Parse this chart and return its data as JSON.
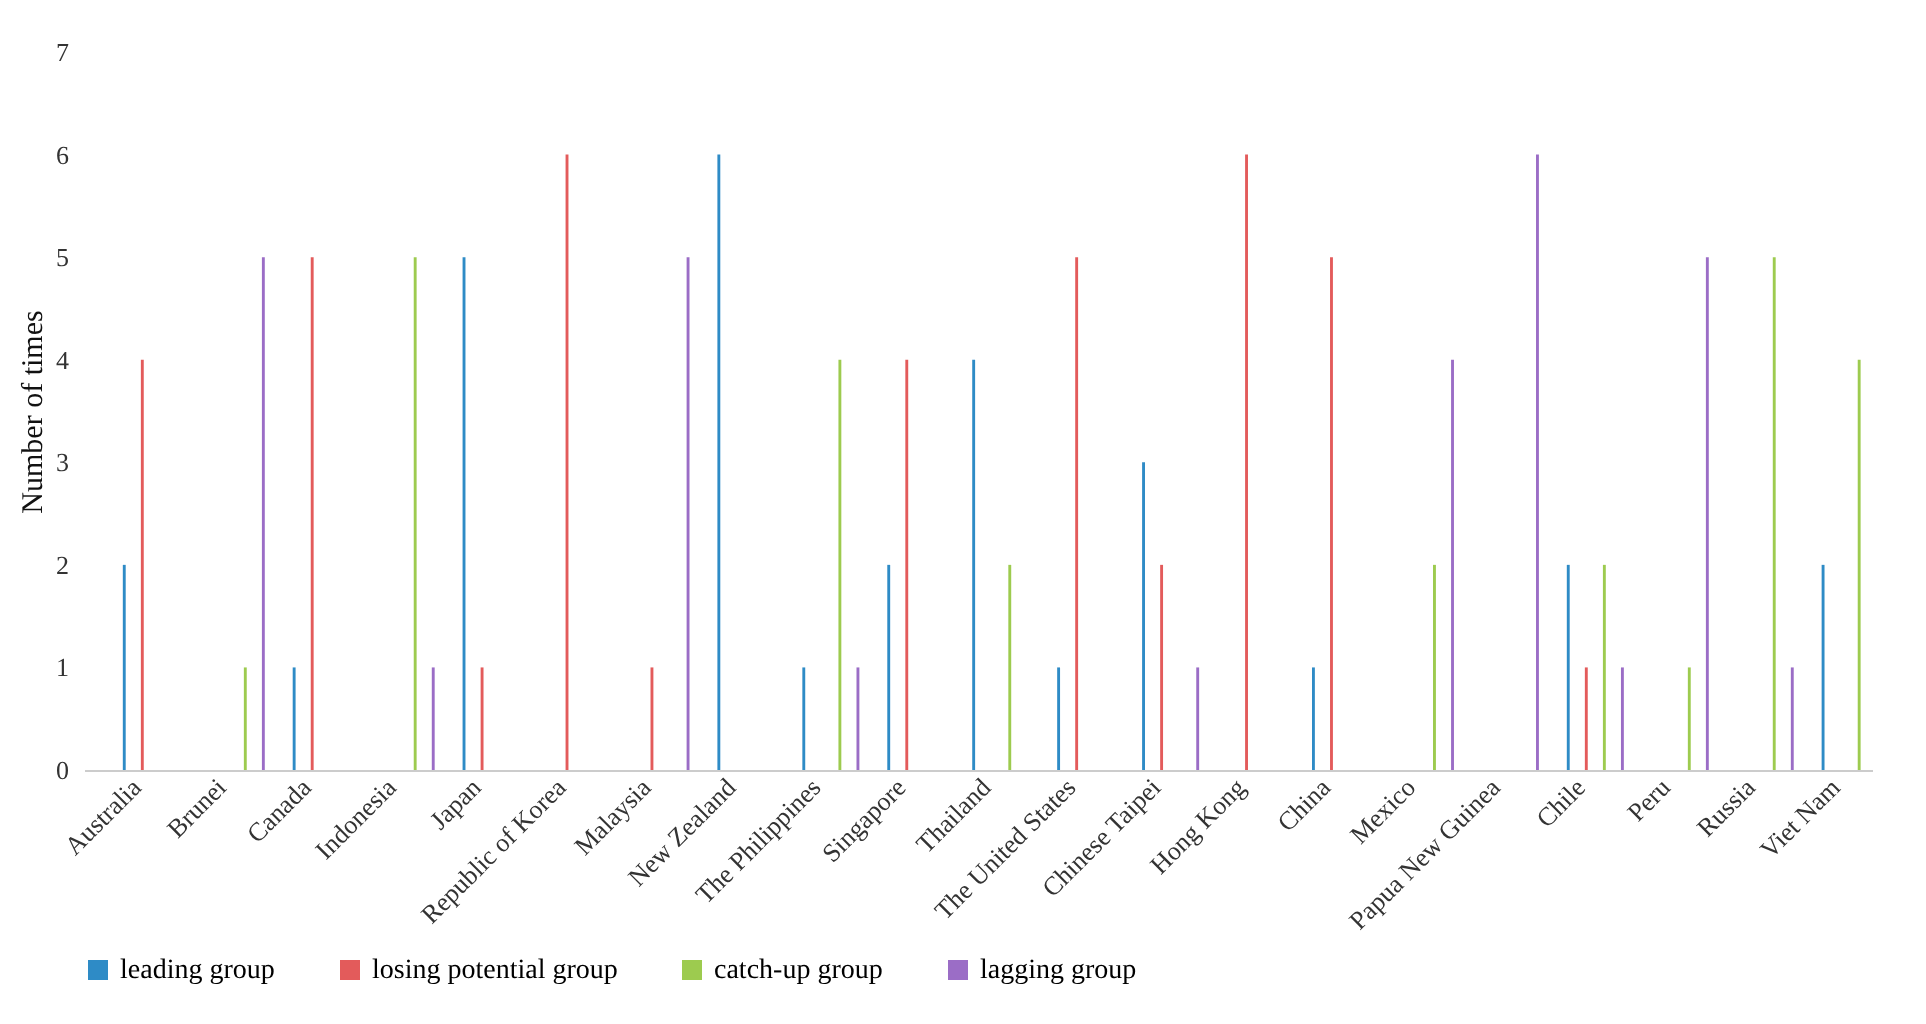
{
  "chart_data": {
    "type": "bar",
    "ylabel": "Number of times",
    "categories": [
      "Australia",
      "Brunei",
      "Canada",
      "Indonesia",
      "Japan",
      "Republic of Korea",
      "Malaysia",
      "New Zealand",
      "The Philippines",
      "Singapore",
      "Thailand",
      "The United States",
      "Chinese Taipei",
      "Hong Kong",
      "China",
      "Mexico",
      "Papua New Guinea",
      "Chile",
      "Peru",
      "Russia",
      "Viet Nam"
    ],
    "series": [
      {
        "name": "leading group",
        "color": "#2e8bc6",
        "values": [
          2,
          0,
          1,
          0,
          5,
          0,
          0,
          6,
          1,
          2,
          4,
          1,
          3,
          0,
          1,
          0,
          0,
          2,
          0,
          0,
          2
        ]
      },
      {
        "name": "losing potential group",
        "color": "#e35b5b",
        "values": [
          4,
          0,
          5,
          0,
          1,
          6,
          1,
          0,
          0,
          4,
          0,
          5,
          2,
          6,
          5,
          0,
          0,
          1,
          0,
          0,
          0
        ]
      },
      {
        "name": "catch-up group",
        "color": "#9dcb4f",
        "values": [
          0,
          1,
          0,
          5,
          0,
          0,
          0,
          0,
          4,
          0,
          2,
          0,
          0,
          0,
          0,
          2,
          0,
          2,
          1,
          5,
          4
        ]
      },
      {
        "name": "lagging group",
        "color": "#9b6dc6",
        "values": [
          0,
          5,
          0,
          1,
          0,
          0,
          5,
          0,
          1,
          0,
          0,
          0,
          1,
          0,
          0,
          4,
          6,
          1,
          5,
          1,
          0
        ]
      }
    ],
    "ylim": [
      0,
      7
    ],
    "yticks": [
      0,
      1,
      2,
      3,
      4,
      5,
      6,
      7
    ],
    "grid": false,
    "legend": "bottom"
  }
}
